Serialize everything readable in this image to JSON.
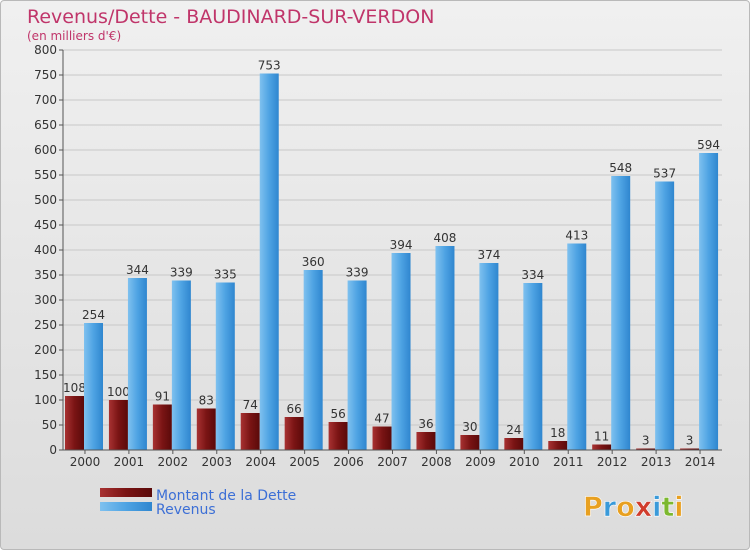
{
  "chart_data": {
    "type": "bar",
    "title": "Revenus/Dette - BAUDINARD-SUR-VERDON",
    "subtitle": "(en milliers d'€)",
    "categories": [
      "2000",
      "2001",
      "2002",
      "2003",
      "2004",
      "2005",
      "2006",
      "2007",
      "2008",
      "2009",
      "2010",
      "2011",
      "2012",
      "2013",
      "2014"
    ],
    "series": [
      {
        "name": "Montant de la Dette",
        "color": "#7a1414",
        "values": [
          108,
          100,
          91,
          83,
          74,
          66,
          56,
          47,
          36,
          30,
          24,
          18,
          11,
          3,
          3
        ]
      },
      {
        "name": "Revenus",
        "color": "#3d96dd",
        "values": [
          254,
          344,
          339,
          335,
          753,
          360,
          339,
          394,
          408,
          374,
          334,
          413,
          548,
          537,
          594
        ]
      }
    ],
    "ylim": [
      0,
      800
    ],
    "yticks": [
      0,
      50,
      100,
      150,
      200,
      250,
      300,
      350,
      400,
      450,
      500,
      550,
      600,
      650,
      700,
      750,
      800
    ],
    "grid": true,
    "legend_position": "bottom-left"
  },
  "branding": {
    "logo_text": "Proxiti",
    "logo_colors": [
      "#e8a020",
      "#3a9ad9",
      "#e8a020",
      "#d03c2c",
      "#3a9ad9",
      "#7cb82f",
      "#e8a020"
    ]
  }
}
